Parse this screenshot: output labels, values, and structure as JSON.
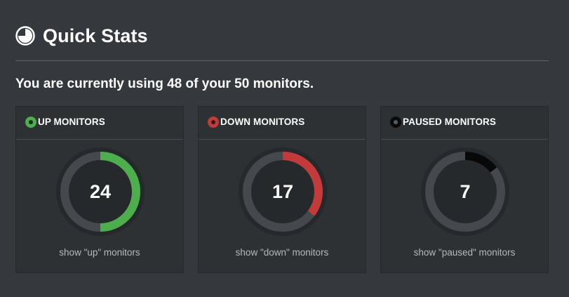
{
  "header": {
    "title": "Quick Stats",
    "icon": "pie-chart-icon"
  },
  "usage": {
    "text": "You are currently using 48 of your 50 monitors."
  },
  "cards": [
    {
      "key": "up",
      "title": "UP MONITORS",
      "value": "24",
      "fraction": 0.5,
      "color": "#4cae4c",
      "link": "show \"up\" monitors"
    },
    {
      "key": "down",
      "title": "DOWN MONITORS",
      "value": "17",
      "fraction": 0.354,
      "color": "#c23a3a",
      "link": "show \"down\" monitors"
    },
    {
      "key": "paused",
      "title": "PAUSED MONITORS",
      "value": "7",
      "fraction": 0.146,
      "color": "#080808",
      "link": "show \"paused\" monitors"
    }
  ]
}
